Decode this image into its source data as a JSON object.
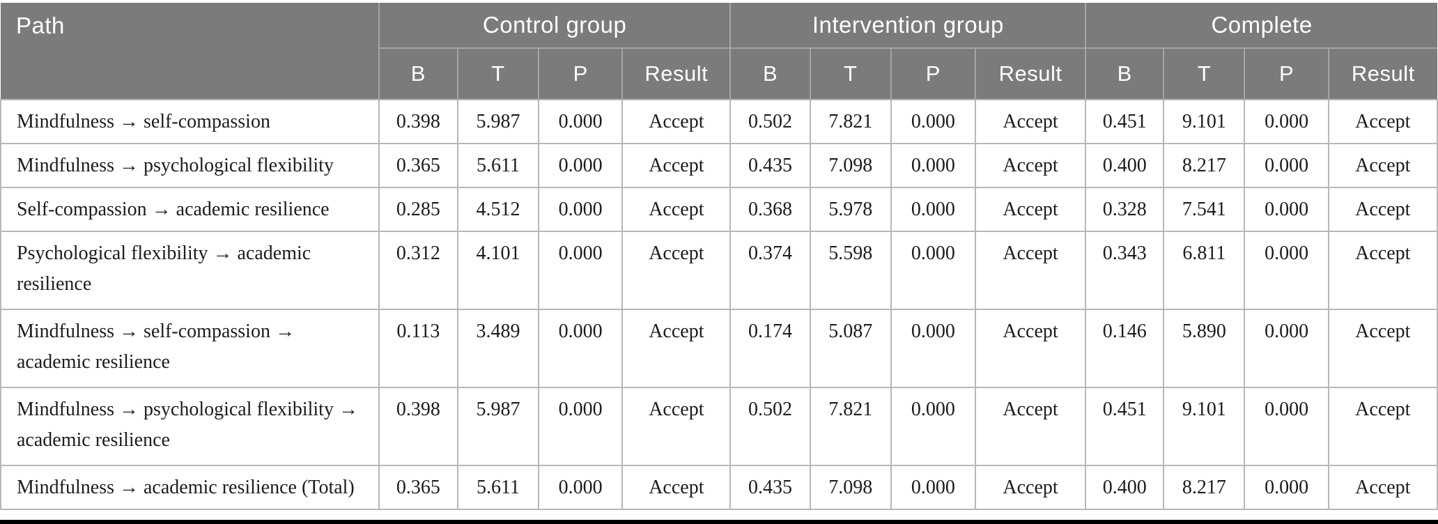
{
  "table": {
    "path_header": "Path",
    "groups": [
      {
        "label": "Control group"
      },
      {
        "label": "Intervention group"
      },
      {
        "label": "Complete"
      }
    ],
    "sub_headers": [
      "B",
      "T",
      "P",
      "Result"
    ],
    "rows": [
      {
        "path": "Mindfulness → self-compassion",
        "two_line": false,
        "values": [
          "0.398",
          "5.987",
          "0.000",
          "Accept",
          "0.502",
          "7.821",
          "0.000",
          "Accept",
          "0.451",
          "9.101",
          "0.000",
          "Accept"
        ]
      },
      {
        "path": "Mindfulness → psychological flexibility",
        "two_line": false,
        "values": [
          "0.365",
          "5.611",
          "0.000",
          "Accept",
          "0.435",
          "7.098",
          "0.000",
          "Accept",
          "0.400",
          "8.217",
          "0.000",
          "Accept"
        ]
      },
      {
        "path": "Self-compassion → academic resilience",
        "two_line": false,
        "values": [
          "0.285",
          "4.512",
          "0.000",
          "Accept",
          "0.368",
          "5.978",
          "0.000",
          "Accept",
          "0.328",
          "7.541",
          "0.000",
          "Accept"
        ]
      },
      {
        "path": "Psychological flexibility → academic\nresilience",
        "two_line": true,
        "values": [
          "0.312",
          "4.101",
          "0.000",
          "Accept",
          "0.374",
          "5.598",
          "0.000",
          "Accept",
          "0.343",
          "6.811",
          "0.000",
          "Accept"
        ]
      },
      {
        "path": "Mindfulness → self-compassion →\nacademic resilience",
        "two_line": true,
        "values": [
          "0.113",
          "3.489",
          "0.000",
          "Accept",
          "0.174",
          "5.087",
          "0.000",
          "Accept",
          "0.146",
          "5.890",
          "0.000",
          "Accept"
        ]
      },
      {
        "path": "Mindfulness → psychological flexibility →\nacademic resilience",
        "two_line": true,
        "values": [
          "0.398",
          "5.987",
          "0.000",
          "Accept",
          "0.502",
          "7.821",
          "0.000",
          "Accept",
          "0.451",
          "9.101",
          "0.000",
          "Accept"
        ]
      },
      {
        "path": "Mindfulness → academic resilience (Total)",
        "two_line": false,
        "last": true,
        "values": [
          "0.365",
          "5.611",
          "0.000",
          "Accept",
          "0.435",
          "7.098",
          "0.000",
          "Accept",
          "0.400",
          "8.217",
          "0.000",
          "Accept"
        ]
      }
    ],
    "colors": {
      "header_bg": "#7b7b7b",
      "header_text": "#ffffff",
      "header_divider": "#a5a5a5",
      "body_border": "#b7b7b7",
      "body_text": "#1c1c1c",
      "bottom_rule": "#000000"
    }
  }
}
